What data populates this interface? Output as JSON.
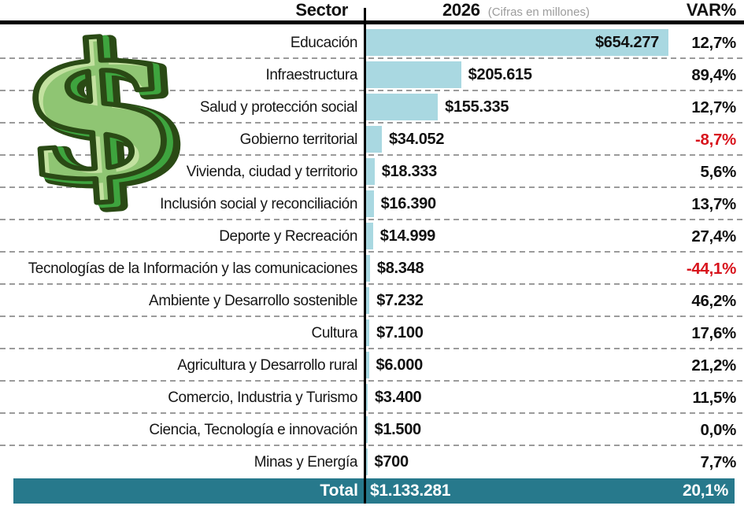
{
  "header": {
    "sector_label": "Sector",
    "year_label": "2026",
    "units_note": "(Cifras en millones)",
    "var_label": "VAR%"
  },
  "chart_data": {
    "type": "bar",
    "orientation": "horizontal",
    "title": "2026 (Cifras en millones)",
    "xlim": [
      0,
      654277
    ],
    "grid": "dashed-row-separators",
    "rows": [
      {
        "sector": "Educación",
        "value": 654277,
        "value_label": "$654.277",
        "var_pct": 12.7,
        "var_label": "12,7%",
        "negative": false
      },
      {
        "sector": "Infraestructura",
        "value": 205615,
        "value_label": "$205.615",
        "var_pct": 89.4,
        "var_label": "89,4%",
        "negative": false
      },
      {
        "sector": "Salud y protección social",
        "value": 155335,
        "value_label": "$155.335",
        "var_pct": 12.7,
        "var_label": "12,7%",
        "negative": false
      },
      {
        "sector": "Gobierno territorial",
        "value": 34052,
        "value_label": "$34.052",
        "var_pct": -8.7,
        "var_label": "-8,7%",
        "negative": true
      },
      {
        "sector": "Vivienda, ciudad y territorio",
        "value": 18333,
        "value_label": "$18.333",
        "var_pct": 5.6,
        "var_label": "5,6%",
        "negative": false
      },
      {
        "sector": "Inclusión social y reconciliación",
        "value": 16390,
        "value_label": "$16.390",
        "var_pct": 13.7,
        "var_label": "13,7%",
        "negative": false
      },
      {
        "sector": "Deporte y Recreación",
        "value": 14999,
        "value_label": "$14.999",
        "var_pct": 27.4,
        "var_label": "27,4%",
        "negative": false
      },
      {
        "sector": "Tecnologías de la Información y las comunicaciones",
        "value": 8348,
        "value_label": "$8.348",
        "var_pct": -44.1,
        "var_label": "-44,1%",
        "negative": true
      },
      {
        "sector": "Ambiente y Desarrollo sostenible",
        "value": 7232,
        "value_label": "$7.232",
        "var_pct": 46.2,
        "var_label": "46,2%",
        "negative": false
      },
      {
        "sector": "Cultura",
        "value": 7100,
        "value_label": "$7.100",
        "var_pct": 17.6,
        "var_label": "17,6%",
        "negative": false
      },
      {
        "sector": "Agricultura y Desarrollo rural",
        "value": 6000,
        "value_label": "$6.000",
        "var_pct": 21.2,
        "var_label": "21,2%",
        "negative": false
      },
      {
        "sector": "Comercio, Industria y Turismo",
        "value": 3400,
        "value_label": "$3.400",
        "var_pct": 11.5,
        "var_label": "11,5%",
        "negative": false
      },
      {
        "sector": "Ciencia, Tecnología e innovación",
        "value": 1500,
        "value_label": "$1.500",
        "var_pct": 0.0,
        "var_label": "0,0%",
        "negative": false
      },
      {
        "sector": "Minas y Energía",
        "value": 700,
        "value_label": "$700",
        "var_pct": 7.7,
        "var_label": "7,7%",
        "negative": false
      }
    ],
    "total": {
      "label": "Total",
      "value": 1133281,
      "value_label": "$1.133.281",
      "var_pct": 20.1,
      "var_label": "20,1%"
    }
  },
  "colors": {
    "bar_fill": "#a9d8e1",
    "total_bg": "#27798c",
    "negative_var": "#d8131c",
    "separator": "#9b9b9b",
    "rule_black": "#000000",
    "note_gray": "#9c9c9c",
    "dollar_dark": "#2a4a15",
    "dollar_mid": "#8fc573",
    "dollar_light": "#c3e1a0",
    "dollar_accent": "#3ea43e"
  }
}
